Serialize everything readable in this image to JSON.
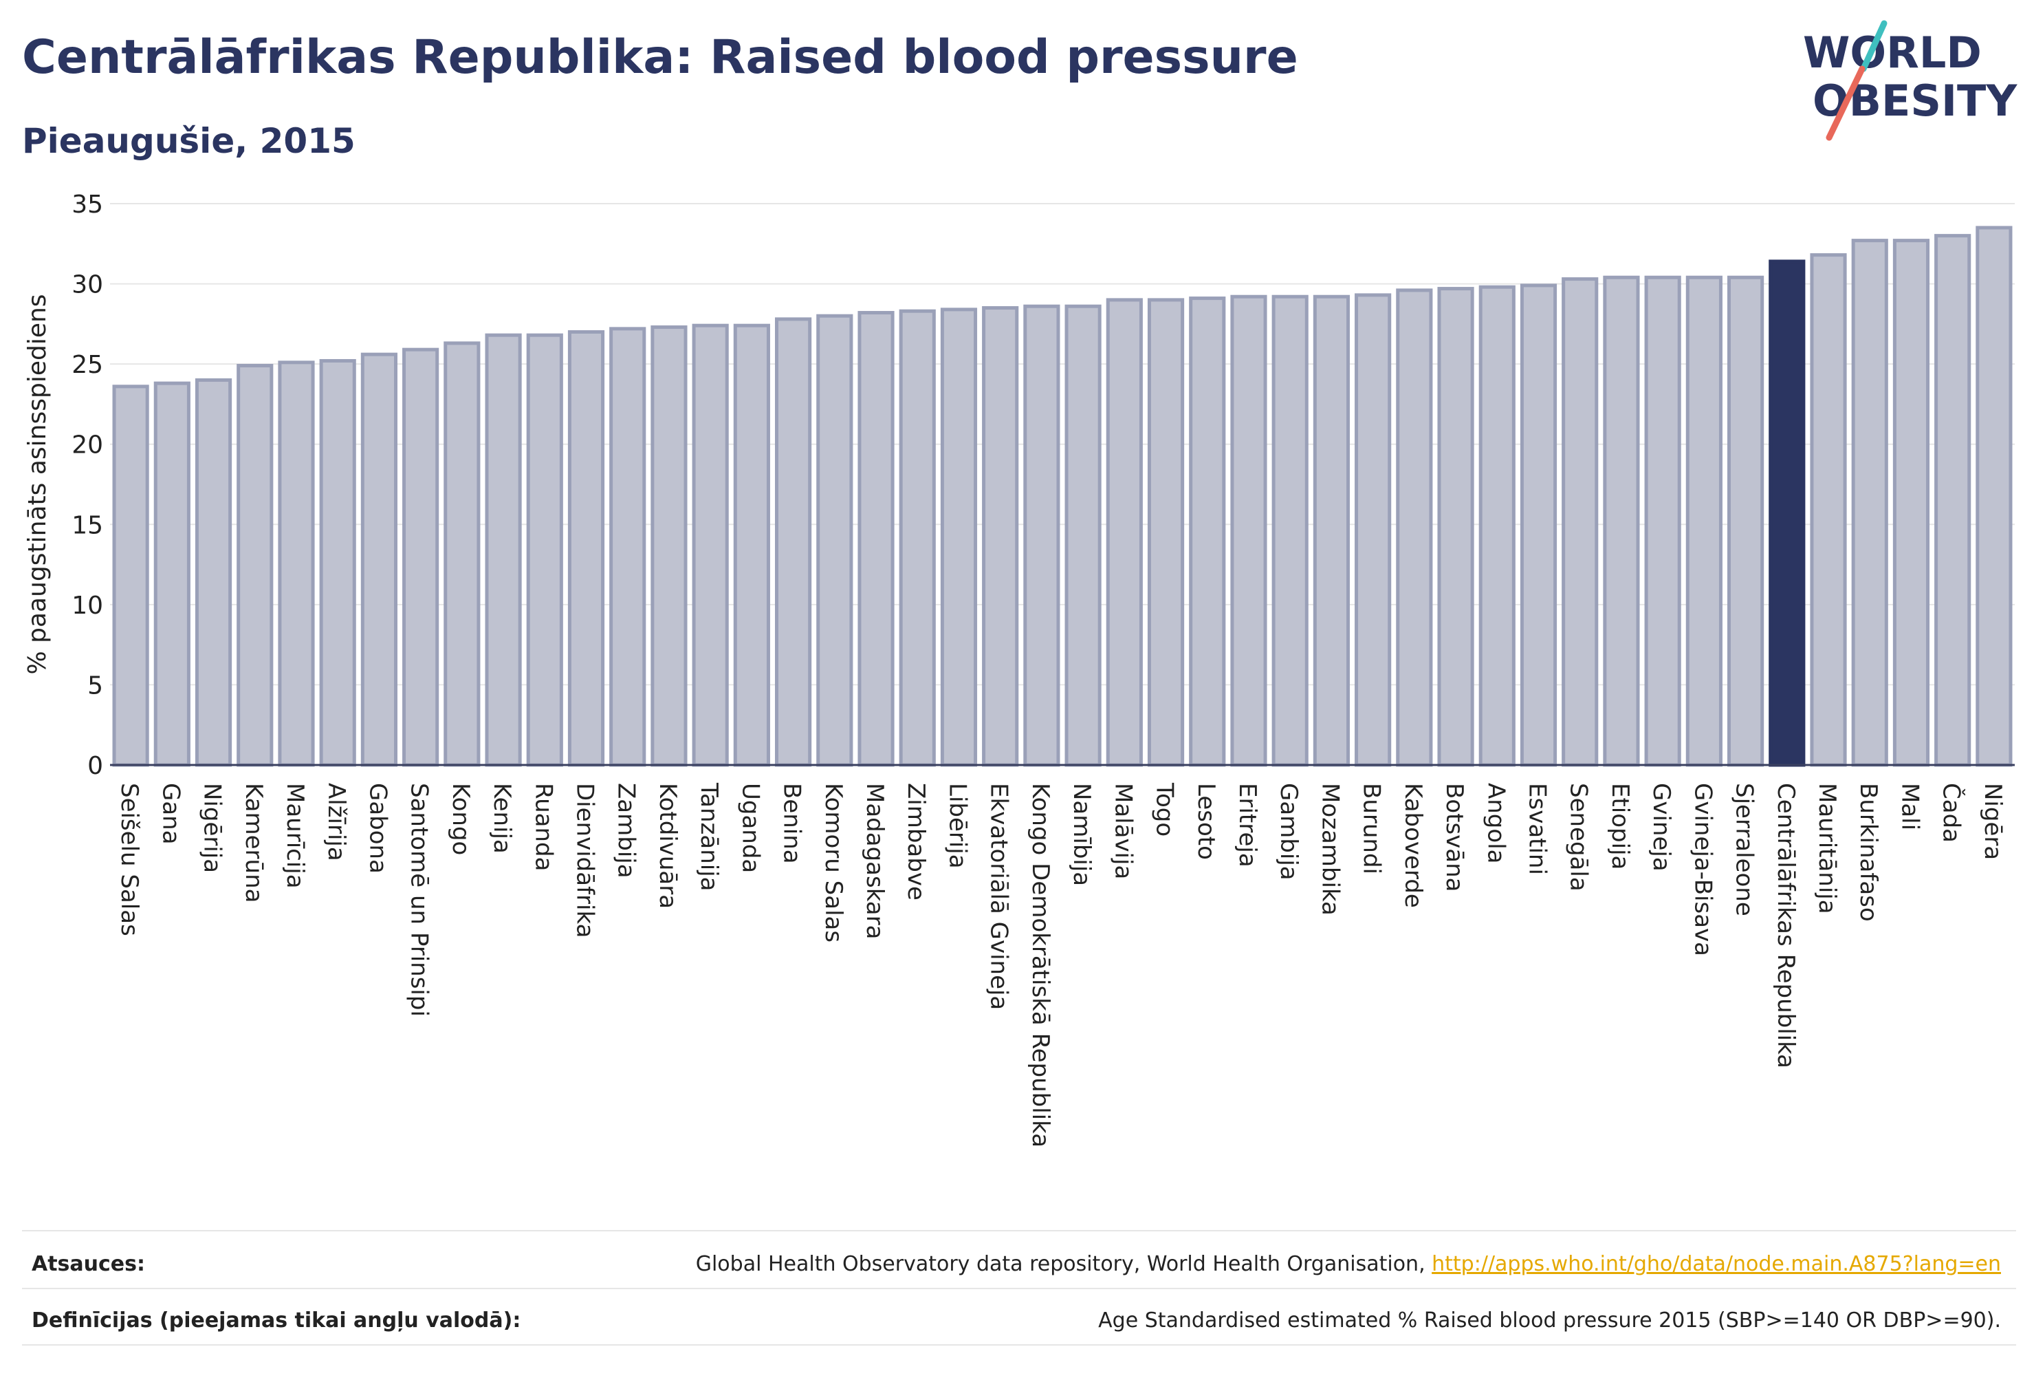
{
  "header": {
    "title": "Centrālāfrikas Republika: Raised blood pressure",
    "subtitle": "Pieaugušie, 2015"
  },
  "logo": {
    "line1": "WORLD",
    "line2": "OBESITY",
    "colors": {
      "text": "#2b3561",
      "slash_teal": "#3fbfbf",
      "slash_coral": "#e8685a"
    }
  },
  "chart_data": {
    "type": "bar",
    "title": "Centrālāfrikas Republika: Raised blood pressure",
    "subtitle": "Pieaugušie, 2015",
    "ylabel": "% paaugstināts asinsspiediens",
    "xlabel": "",
    "ylim": [
      0,
      35
    ],
    "yticks": [
      0,
      5,
      10,
      15,
      20,
      25,
      30,
      35
    ],
    "grid": true,
    "highlight": "Centrālāfrikas Republika",
    "colors": {
      "bar": "#bfc2d0",
      "bar_edge": "#9aa0b8",
      "highlight": "#2b3561",
      "grid": "#e6e6e6"
    },
    "categories": [
      "Seišelu Salas",
      "Gana",
      "Nigērija",
      "Kamerūna",
      "Maurīcija",
      "Alžīrija",
      "Gabona",
      "Santomē un Prinsipi",
      "Kongo",
      "Kenija",
      "Ruanda",
      "Dienvidāfrika",
      "Zambija",
      "Kotdivuāra",
      "Tanzānija",
      "Uganda",
      "Benina",
      "Komoru Salas",
      "Madagaskara",
      "Zimbabve",
      "Libērija",
      "Ekvatoriālā Gvineja",
      "Kongo Demokrātiskā Republika",
      "Namībija",
      "Malāvija",
      "Togo",
      "Lesoto",
      "Eritreja",
      "Gambija",
      "Mozambika",
      "Burundi",
      "Kaboverde",
      "Botsvāna",
      "Angola",
      "Esvatini",
      "Senegāla",
      "Etiopija",
      "Gvineja",
      "Gvineja-Bisava",
      "Sjerraleone",
      "Centrālāfrikas Republika",
      "Mauritānija",
      "Burkinafaso",
      "Mali",
      "Čada",
      "Nigēra"
    ],
    "values": [
      23.6,
      23.8,
      24.0,
      24.9,
      25.1,
      25.2,
      25.6,
      25.9,
      26.3,
      26.8,
      26.8,
      27.0,
      27.2,
      27.3,
      27.4,
      27.4,
      27.8,
      28.0,
      28.2,
      28.3,
      28.4,
      28.5,
      28.6,
      28.6,
      29.0,
      29.0,
      29.1,
      29.2,
      29.2,
      29.2,
      29.3,
      29.6,
      29.7,
      29.8,
      29.9,
      30.3,
      30.4,
      30.4,
      30.4,
      30.4,
      31.4,
      31.8,
      32.7,
      32.7,
      33.0,
      33.5
    ]
  },
  "footer": {
    "sources_label": "Atsauces:",
    "sources_text": "Global Health Observatory data repository, World Health Organisation, ",
    "sources_link": "http://apps.who.int/gho/data/node.main.A875?lang=en",
    "definitions_label": "Definīcijas (pieejamas tikai angļu valodā):",
    "definitions_text": "Age Standardised estimated % Raised blood pressure 2015 (SBP>=140 OR DBP>=90)."
  }
}
